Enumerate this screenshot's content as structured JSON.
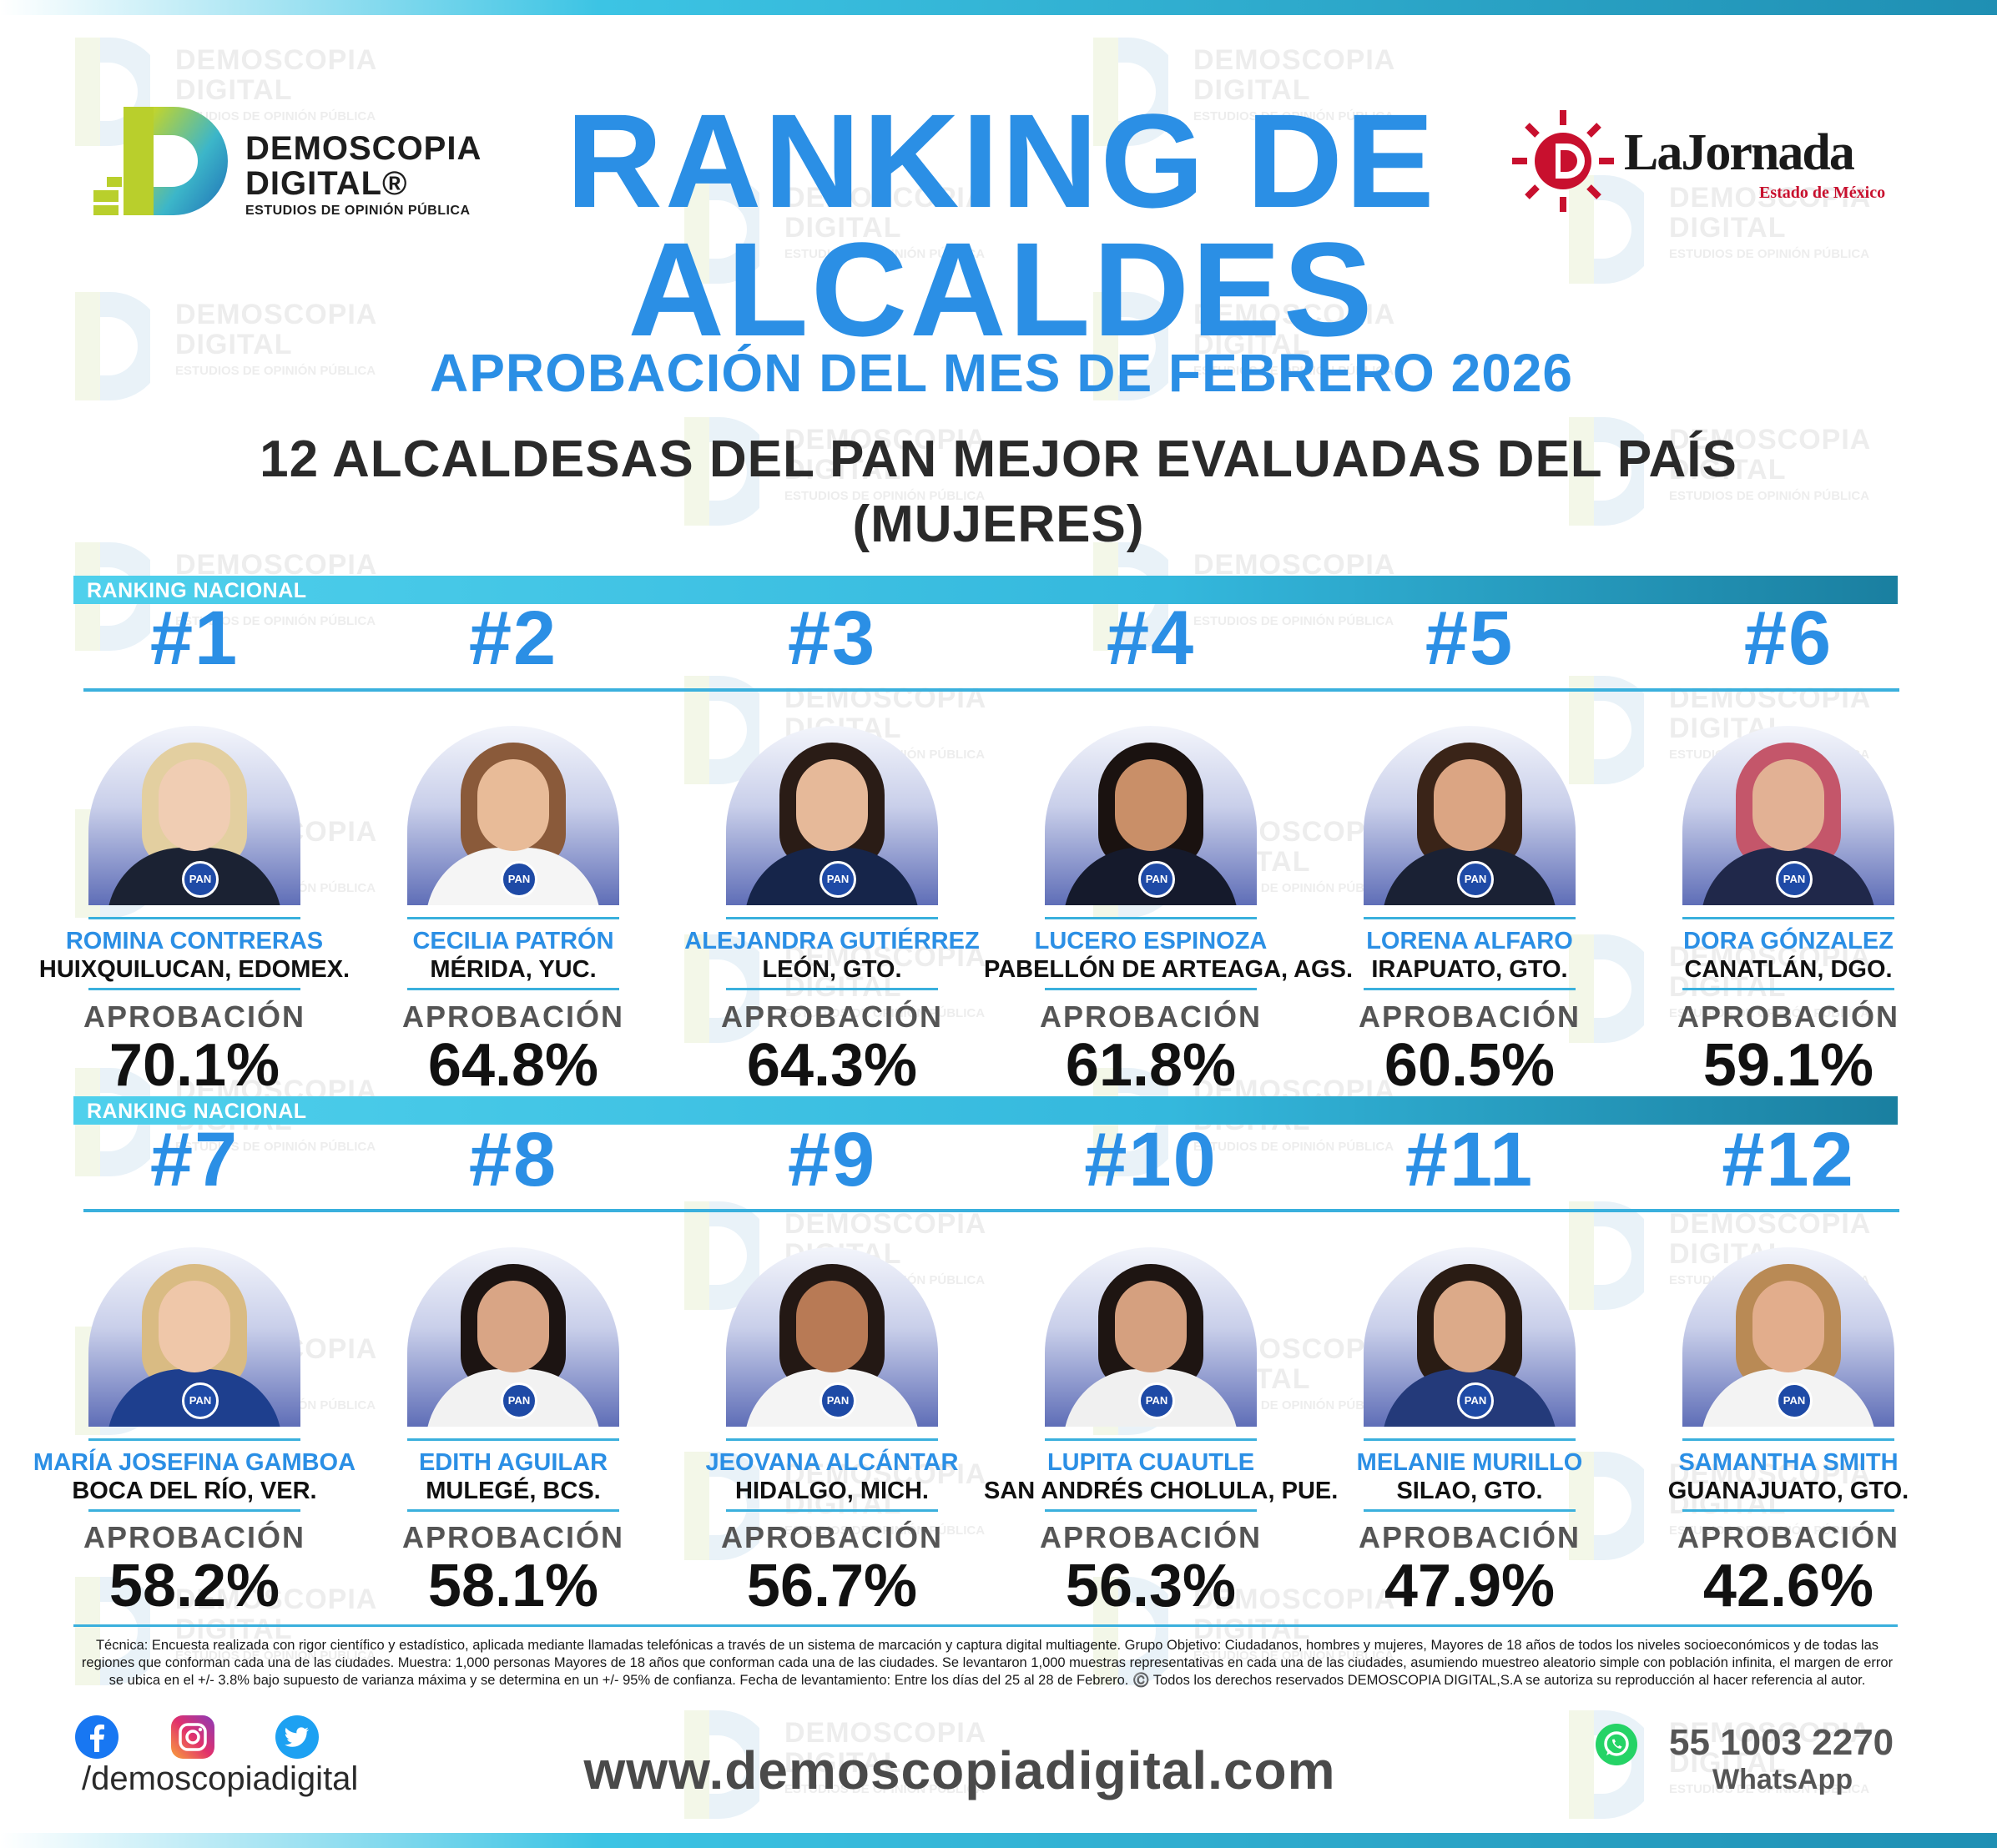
{
  "watermark": {
    "line1": "DEMOSCOPIA",
    "line2": "DIGITAL",
    "line3": "ESTUDIOS DE OPINIÓN PÚBLICA"
  },
  "logo_left": {
    "line1": "DEMOSCOPIA",
    "line2": "DIGITAL®",
    "line3": "ESTUDIOS DE OPINIÓN PÚBLICA"
  },
  "logo_right": {
    "name": "LaJornada",
    "edition": "Estado de México"
  },
  "title": {
    "line1": "RANKING DE",
    "line2": "ALCALDES",
    "subtitle": "APROBACIÓN DEL MES DE FEBRERO 2026"
  },
  "heading": {
    "line1": "12 ALCALDESAS DEL PAN MEJOR EVALUADAS DEL PAÍS",
    "line2": "(MUJERES)"
  },
  "band_label": "RANKING NACIONAL",
  "approval_label": "APROBACIÓN",
  "pan_badge": "PAN",
  "ranking": [
    {
      "rank": "#1",
      "name": "ROMINA CONTRERAS",
      "place": "HUIXQUILUCAN, EDOMEX.",
      "approval": "70.1%",
      "approval_value": 70.1
    },
    {
      "rank": "#2",
      "name": "CECILIA PATRÓN",
      "place": "MÉRIDA, YUC.",
      "approval": "64.8%",
      "approval_value": 64.8
    },
    {
      "rank": "#3",
      "name": "ALEJANDRA GUTIÉRREZ",
      "place": "LEÓN, GTO.",
      "approval": "64.3%",
      "approval_value": 64.3
    },
    {
      "rank": "#4",
      "name": "LUCERO ESPINOZA",
      "place": "PABELLÓN DE ARTEAGA, AGS.",
      "approval": "61.8%",
      "approval_value": 61.8
    },
    {
      "rank": "#5",
      "name": "LORENA ALFARO",
      "place": "IRAPUATO, GTO.",
      "approval": "60.5%",
      "approval_value": 60.5
    },
    {
      "rank": "#6",
      "name": "DORA GÓNZALEZ",
      "place": "CANATLÁN, DGO.",
      "approval": "59.1%",
      "approval_value": 59.1
    },
    {
      "rank": "#7",
      "name": "MARÍA JOSEFINA GAMBOA",
      "place": "BOCA DEL RÍO, VER.",
      "approval": "58.2%",
      "approval_value": 58.2
    },
    {
      "rank": "#8",
      "name": "EDITH AGUILAR",
      "place": "MULEGÉ, BCS.",
      "approval": "58.1%",
      "approval_value": 58.1
    },
    {
      "rank": "#9",
      "name": "JEOVANA ALCÁNTAR",
      "place": "HIDALGO, MICH.",
      "approval": "56.7%",
      "approval_value": 56.7
    },
    {
      "rank": "#10",
      "name": "LUPITA CUAUTLE",
      "place": "SAN ANDRÉS CHOLULA, PUE.",
      "approval": "56.3%",
      "approval_value": 56.3
    },
    {
      "rank": "#11",
      "name": "MELANIE MURILLO",
      "place": "SILAO, GTO.",
      "approval": "47.9%",
      "approval_value": 47.9
    },
    {
      "rank": "#12",
      "name": "SAMANTHA SMITH",
      "place": "GUANAJUATO, GTO.",
      "approval": "42.6%",
      "approval_value": 42.6
    }
  ],
  "footnote": "Técnica: Encuesta realizada con rigor científico y estadístico, aplicada mediante llamadas telefónicas a través de un sistema de marcación y captura digital multiagente. Grupo Objetivo: Ciudadanos, hombres y mujeres, Mayores de 18 años de todos los niveles socioeconómicos y de todas las regiones que conforman cada una de las ciudades. Muestra: 1,000 personas Mayores de 18 años que conforman cada una de las ciudades. Se levantaron 1,000 muestras representativas en cada una de las ciudades, asumiendo muestreo aleatorio simple con población infinita, el margen de error se ubica en el +/- 3.8% bajo supuesto de varianza máxima y se determina en un +/- 95% de confianza. Fecha de levantamiento: Entre los días del 25 al 28 de Febrero. ©️ Todos los derechos reservados DEMOSCOPIA DIGITAL,S.A se autoriza su reproducción al hacer referencia al autor.",
  "footer": {
    "handle": "/demoscopiadigital",
    "website": "www.demoscopiadigital.com",
    "phone": "55 1003 2270",
    "whatsapp_label": "WhatsApp"
  },
  "icons": {
    "facebook": "facebook-icon",
    "instagram": "instagram-icon",
    "twitter": "twitter-icon",
    "whatsapp": "whatsapp-icon",
    "pan_badge": "pan-badge-icon"
  },
  "colors": {
    "title_blue": "#2b8fe5",
    "band_cyan": "#34b8dd",
    "jornada_red": "#c8102e",
    "pan_blue": "#1e4aa6"
  }
}
